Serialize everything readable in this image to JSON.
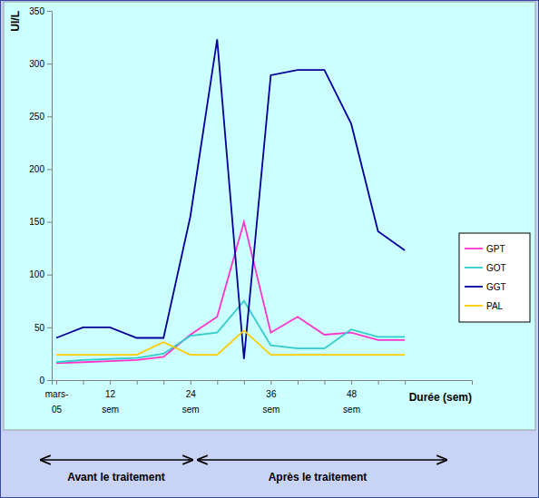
{
  "chart_data": {
    "type": "line",
    "y_label": "UI/L",
    "x_label": "Durée (sem)",
    "annotations": [
      "Avant le traitement",
      "Après le traitement"
    ],
    "categories": [
      "mars-05",
      null,
      "12 sem",
      null,
      null,
      "24 sem",
      null,
      null,
      "36 sem",
      null,
      null,
      "48 sem",
      null,
      null
    ],
    "series": [
      {
        "name": "GPT",
        "color": "#ff33cc",
        "values": [
          16,
          17,
          18,
          19,
          22,
          43,
          60,
          150,
          45,
          60,
          43,
          45,
          38,
          38
        ]
      },
      {
        "name": "GOT",
        "color": "#33cccc",
        "values": [
          17,
          19,
          20,
          21,
          25,
          42,
          45,
          75,
          33,
          30,
          30,
          48,
          41,
          41
        ]
      },
      {
        "name": "GGT",
        "color": "#000099",
        "values": [
          40,
          50,
          50,
          40,
          40,
          155,
          323,
          20,
          289,
          294,
          294,
          243,
          141,
          123
        ]
      },
      {
        "name": "PAL",
        "color": "#ffcc00",
        "values": [
          24,
          24,
          24,
          24,
          36,
          24,
          24,
          47,
          24,
          24,
          24,
          24,
          24,
          24
        ]
      }
    ],
    "ylim": [
      0,
      350
    ],
    "yticks": [
      0,
      50,
      100,
      150,
      200,
      250,
      300,
      350
    ],
    "grid": false,
    "legend": "right"
  }
}
